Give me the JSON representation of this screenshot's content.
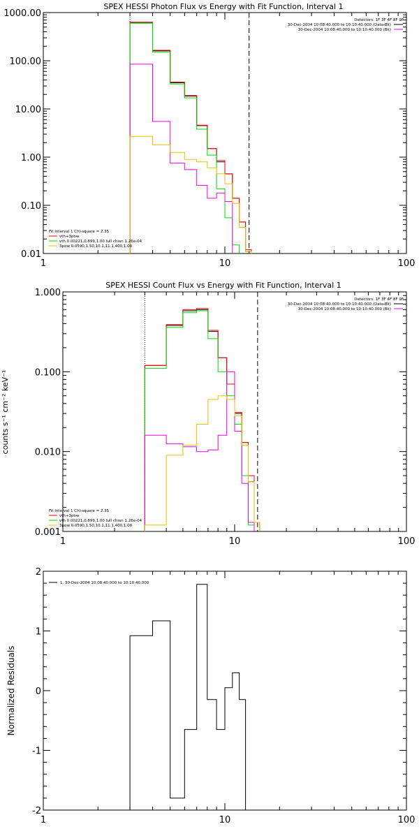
{
  "chart_data": [
    {
      "type": "line",
      "title": "SPEX HESSI Photon Flux vs Energy with Fit Function, Interval 1",
      "xlabel": "",
      "ylabel": "",
      "xscale": "log",
      "yscale": "log",
      "xlim": [
        1,
        100
      ],
      "ylim": [
        0.01,
        1000
      ],
      "xticks": [
        1,
        10,
        100
      ],
      "xtick_labels": [
        "1",
        "10",
        "100"
      ],
      "yticks": [
        0.01,
        0.1,
        1,
        10,
        100,
        1000
      ],
      "ytick_labels": [
        "0.01",
        "0.10",
        "1.00",
        "10.00",
        "100.00",
        "1000.00"
      ],
      "fit_range_markers": [
        3,
        13.6
      ],
      "bin_edges": [
        3,
        4,
        5,
        6,
        7,
        8,
        9,
        10,
        11,
        12,
        13,
        14,
        15
      ],
      "series": [
        {
          "color": "#000000",
          "values": [
            620,
            160,
            35,
            18.5,
            4.5,
            1.5,
            0.8,
            0.45,
            0.14,
            0.045,
            0.011
          ]
        },
        {
          "color": "#ff0000",
          "values": [
            630,
            165,
            36,
            19,
            4.6,
            1.5,
            0.85,
            0.45,
            0.14,
            0.045,
            0.012
          ]
        },
        {
          "color": "#00dd00",
          "values": [
            600,
            150,
            33,
            17,
            3.8,
            1.1,
            0.22,
            0.055,
            0.015
          ]
        },
        {
          "color": "#ee00ee",
          "values": [
            85,
            5.5,
            0.75,
            0.55,
            0.26,
            0.14,
            0.18,
            0.12
          ]
        },
        {
          "color": "#e8c000",
          "values": [
            2.7,
            1.8,
            1.25,
            0.9,
            0.8,
            0.6,
            0.45,
            0.28,
            0.11,
            0.035,
            0.011
          ]
        }
      ],
      "legend_top": {
        "header": "Detectors: 1F 3F 4F 8F 9F",
        "entries": [
          {
            "text": "30-Dec-2004 10:08:40.000 to 10:10:40.000 (Data-Bk)",
            "color": "#000000"
          },
          {
            "text": "30-Dec-2004 10:08:40.000 to 10:10:40.000 (Bk)",
            "color": "#ee00ee"
          }
        ]
      },
      "legend_bottom": {
        "header": "Fit Interval 1   Chi-square = 2.35",
        "entries": [
          {
            "text": "vth+3pow",
            "color": "#ff0000"
          },
          {
            "text": "vth 0.00221,0.899,1.00  full chian 1.26e-04",
            "color": "#00dd00"
          },
          {
            "text": "3pow 0.0590,1.50,10.1,11.1,400,1.00",
            "color": "#e8c000"
          }
        ]
      }
    },
    {
      "type": "line",
      "title": "SPEX HESSI Count Flux vs Energy with Fit Function, Interval 1",
      "xlabel": "",
      "ylabel": "counts s⁻¹ cm⁻² keV⁻¹",
      "xscale": "log",
      "yscale": "log",
      "xlim": [
        1,
        100
      ],
      "ylim": [
        0.001,
        1
      ],
      "xticks": [
        1,
        10,
        100
      ],
      "xtick_labels": [
        "1",
        "10",
        "100"
      ],
      "yticks": [
        0.001,
        0.01,
        0.1,
        1
      ],
      "ytick_labels": [
        "0.001",
        "0.010",
        "0.100",
        "1.000"
      ],
      "fit_range_markers": [
        3,
        13.6
      ],
      "bin_edges": [
        3,
        4,
        5,
        6,
        7,
        8,
        9,
        10,
        11,
        12,
        13,
        14,
        15
      ],
      "series": [
        {
          "color": "#000000",
          "values": [
            0.12,
            0.38,
            0.58,
            0.6,
            0.32,
            0.15,
            0.07,
            0.03,
            0.013,
            0.0042,
            0.0013
          ]
        },
        {
          "color": "#ff0000",
          "values": [
            0.12,
            0.39,
            0.6,
            0.62,
            0.33,
            0.15,
            0.07,
            0.031,
            0.013,
            0.005,
            0.0013
          ]
        },
        {
          "color": "#00dd00",
          "values": [
            0.11,
            0.36,
            0.55,
            0.58,
            0.26,
            0.1,
            0.05,
            0.022,
            0.005,
            0.0012
          ]
        },
        {
          "color": "#ee00ee",
          "values": [
            0.016,
            0.0125,
            0.0115,
            0.01,
            0.0105,
            0.016,
            0.1,
            0.018,
            0.004,
            0.0013
          ]
        },
        {
          "color": "#e8c000",
          "values": [
            0.0012,
            0.009,
            0.012,
            0.022,
            0.045,
            0.05,
            0.045,
            0.028,
            0.012,
            0.0042,
            0.0013
          ]
        }
      ],
      "legend_top": {
        "header": "Detectors: 1F 3F 4F 8F 9F",
        "entries": [
          {
            "text": "30-Dec-2004 10:08:40.000 to 10:10:40.000 (Data-Bk)",
            "color": "#000000"
          },
          {
            "text": "30-Dec-2004 10:08:40.000 to 10:10:40.000 (Bk)",
            "color": "#ee00ee"
          }
        ]
      },
      "legend_bottom": {
        "header": "Fit Interval 1   Chi-square = 2.35",
        "entries": [
          {
            "text": "vth+3pow",
            "color": "#ff0000"
          },
          {
            "text": "vth 0.00221,0.899,1.00  full chian 1.26e-04",
            "color": "#00dd00"
          },
          {
            "text": "3pow 0.0590,1.50,10.1,11.1,400,1.00",
            "color": "#e8c000"
          }
        ]
      }
    },
    {
      "type": "line",
      "title": "",
      "xlabel": "",
      "ylabel": "Normalized Residuals",
      "xscale": "log",
      "yscale": "linear",
      "xlim": [
        1,
        100
      ],
      "ylim": [
        -2,
        2
      ],
      "xticks": [
        1,
        10,
        100
      ],
      "xtick_labels": [
        "1",
        "10",
        "100"
      ],
      "yticks": [
        -2,
        -1,
        0,
        1,
        2
      ],
      "ytick_labels": [
        "-2",
        "-1",
        "0",
        "1",
        "2"
      ],
      "bin_edges": [
        3,
        4,
        5,
        6,
        7,
        8,
        9,
        10,
        11,
        12,
        13,
        14
      ],
      "series": [
        {
          "color": "#000000",
          "values": [
            0.92,
            1.17,
            -1.8,
            -0.65,
            1.78,
            -0.15,
            -0.65,
            0.05,
            0.3,
            -0.15
          ]
        }
      ],
      "legend_top": {
        "header": "",
        "entries": [
          {
            "text": "1. 30-Dec-2004 10:08:40.000 to 10:10:40.000",
            "color": "#000000"
          }
        ]
      }
    }
  ]
}
